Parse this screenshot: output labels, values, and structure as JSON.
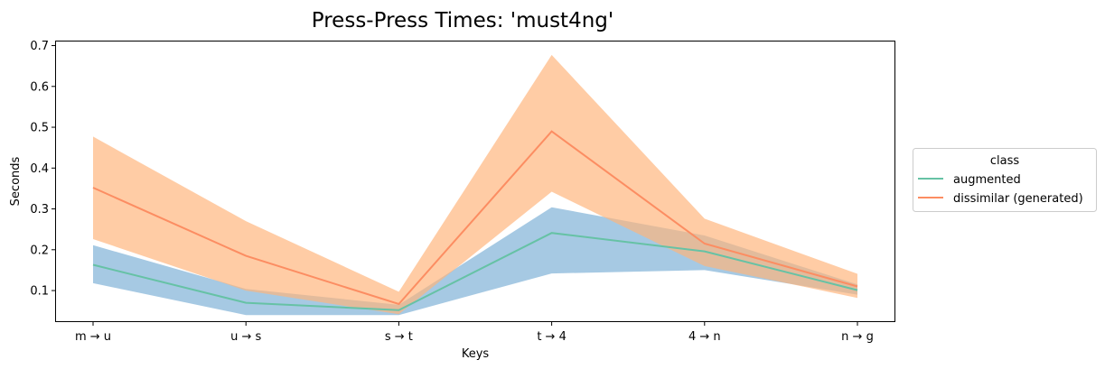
{
  "chart_data": {
    "type": "line",
    "title": "Press-Press Times: 'must4ng'",
    "xlabel": "Keys",
    "ylabel": "Seconds",
    "categories": [
      "m → u",
      "u → s",
      "s → t",
      "t → 4",
      "4 → n",
      "n → g"
    ],
    "y_ticks": [
      0.1,
      0.2,
      0.3,
      0.4,
      0.5,
      0.6,
      0.7
    ],
    "ylim": [
      0.025,
      0.71
    ],
    "grid": false,
    "legend": {
      "title": "class",
      "placement": "right-outside"
    },
    "series": [
      {
        "name": "augmented",
        "color": "#66c2a5",
        "band_color": "#6fa8d2",
        "values": [
          0.163,
          0.07,
          0.052,
          0.241,
          0.196,
          0.101
        ],
        "lower": [
          0.118,
          0.04,
          0.04,
          0.142,
          0.15,
          0.09
        ],
        "upper": [
          0.211,
          0.104,
          0.065,
          0.304,
          0.235,
          0.115
        ]
      },
      {
        "name": "dissimilar (generated)",
        "color": "#fc8d62",
        "band_color": "#ffb47a",
        "values": [
          0.352,
          0.185,
          0.067,
          0.49,
          0.215,
          0.11
        ],
        "lower": [
          0.226,
          0.1,
          0.042,
          0.342,
          0.16,
          0.082
        ],
        "upper": [
          0.477,
          0.27,
          0.097,
          0.677,
          0.276,
          0.141
        ]
      }
    ]
  }
}
